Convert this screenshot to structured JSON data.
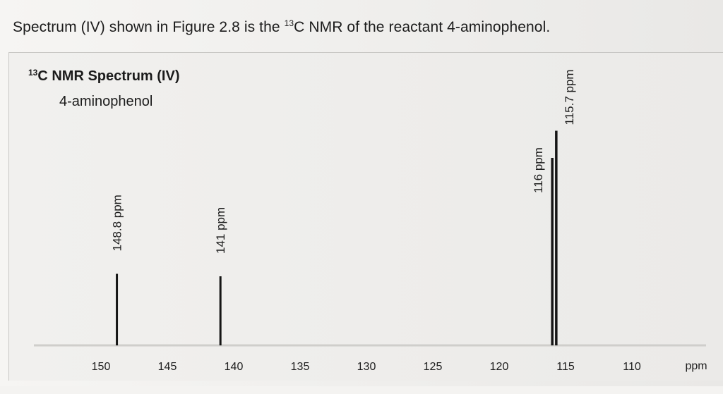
{
  "heading": {
    "text_before": "Spectrum (IV) shown in Figure 2.8 is the ",
    "isotope_mass": "13",
    "text_after": "C NMR of the reactant 4-aminophenol."
  },
  "chart_data": {
    "type": "bar",
    "title_isotope": "13",
    "title": "C NMR Spectrum (IV)",
    "subtitle": "4-aminophenol",
    "xlabel": "ppm",
    "ylabel": "",
    "x_reversed": true,
    "xlim": [
      151,
      107
    ],
    "x_ticks": [
      150,
      145,
      140,
      135,
      130,
      125,
      120,
      115,
      110
    ],
    "grid": false,
    "peaks": [
      {
        "ppm": 148.8,
        "label": "148.8 ppm",
        "intensity": 0.29
      },
      {
        "ppm": 141,
        "label": "141 ppm",
        "intensity": 0.28
      },
      {
        "ppm": 116,
        "label": "116 ppm",
        "intensity": 0.76
      },
      {
        "ppm": 115.7,
        "label": "115.7 ppm",
        "intensity": 0.87
      }
    ]
  }
}
